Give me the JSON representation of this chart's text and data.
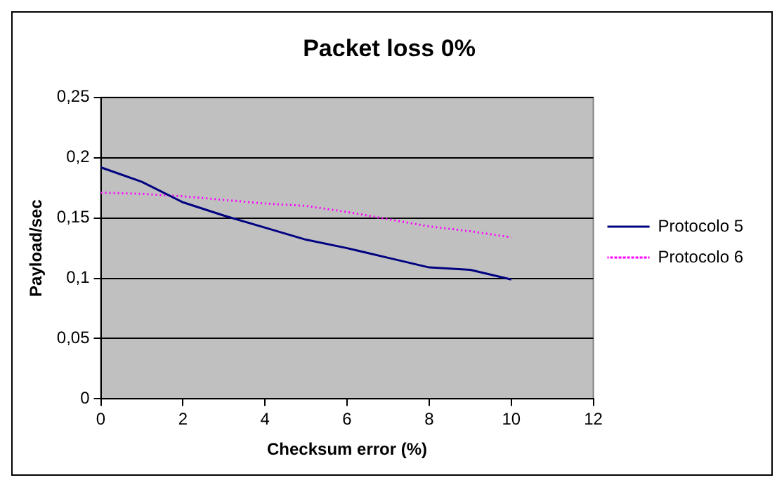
{
  "chart_data": {
    "type": "line",
    "title": "Packet loss 0%",
    "xlabel": "Checksum error (%)",
    "ylabel": "Payload/sec",
    "x": [
      0,
      1,
      2,
      3,
      4,
      5,
      6,
      7,
      8,
      9,
      10
    ],
    "series": [
      {
        "name": "Protocolo 5",
        "color": "#000080",
        "values": [
          0.192,
          0.18,
          0.163,
          0.152,
          0.142,
          0.132,
          0.125,
          0.117,
          0.109,
          0.107,
          0.099
        ]
      },
      {
        "name": "Protocolo 6",
        "color": "#ff00ff",
        "line_style": "dotted",
        "values": [
          0.171,
          0.17,
          0.168,
          0.165,
          0.162,
          0.16,
          0.155,
          0.149,
          0.143,
          0.139,
          0.134
        ]
      }
    ],
    "xlim": [
      0,
      12
    ],
    "xticks": [
      0,
      2,
      4,
      6,
      8,
      10,
      12
    ],
    "ylim": [
      0,
      0.25
    ],
    "yticks": [
      {
        "value": 0,
        "label": "0"
      },
      {
        "value": 0.05,
        "label": "0,05"
      },
      {
        "value": 0.1,
        "label": "0,1"
      },
      {
        "value": 0.15,
        "label": "0,15"
      },
      {
        "value": 0.2,
        "label": "0,2"
      },
      {
        "value": 0.25,
        "label": "0,25"
      }
    ],
    "grid": "y",
    "legend": "right",
    "marker": "none"
  }
}
